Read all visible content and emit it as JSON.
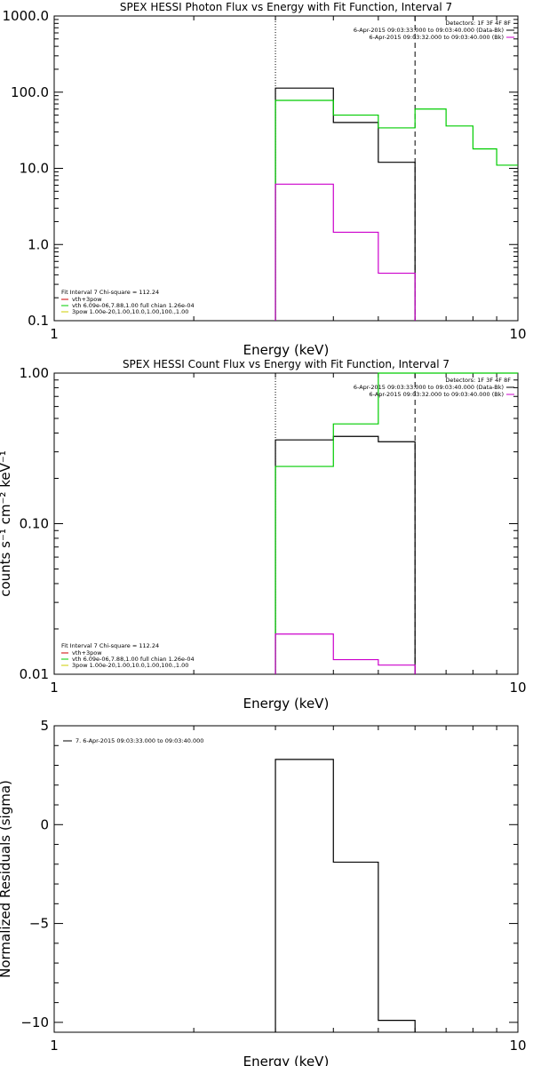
{
  "panels": [
    {
      "id": "photon",
      "title": "SPEX HESSI Photon Flux vs Energy with Fit Function, Interval 7",
      "xlabel": "Energy (keV)",
      "ylabel": "",
      "xscale": "log",
      "yscale": "log",
      "xlim": [
        1,
        10
      ],
      "ylim": [
        0.1,
        1000
      ],
      "xticks": [
        {
          "v": 1,
          "label": "1"
        },
        {
          "v": 10,
          "label": "10"
        }
      ],
      "yticks": [
        {
          "v": 0.1,
          "label": "0.1"
        },
        {
          "v": 1,
          "label": "1.0"
        },
        {
          "v": 10,
          "label": "10.0"
        },
        {
          "v": 100,
          "label": "100.0"
        },
        {
          "v": 1000,
          "label": "1000.0"
        }
      ],
      "vlines": [
        {
          "x": 3,
          "style": "dotted"
        },
        {
          "x": 6,
          "style": "dashed"
        }
      ],
      "detector_text": "Detectors: 1F 3F 4F 8F",
      "detector_lines": [
        {
          "text": "6-Apr-2015 09:03:33.000 to 09:03:40.000 (Data-Bk)",
          "color": "#000000"
        },
        {
          "text": "6-Apr-2015 09:03:32.000 to 09:03:40.000 (Bk)",
          "color": "#cc00cc"
        }
      ],
      "fit_header": "Fit Interval 7   Chi-square = 112.24",
      "legend": [
        {
          "label": "vth+3pow",
          "color": "#cc0000"
        },
        {
          "label": "vth 6.09e-06,7.88,1.00  full chian 1.26e-04",
          "color": "#00cc00"
        },
        {
          "label": "3pow 1.00e-20,1.00,10.0,1.00,100.,1.00",
          "color": "#cccc00"
        }
      ]
    },
    {
      "id": "count",
      "title": "SPEX HESSI Count Flux vs Energy with Fit Function, Interval 7",
      "xlabel": "Energy (keV)",
      "ylabel": "counts s⁻¹ cm⁻² keV⁻¹",
      "xscale": "log",
      "yscale": "log",
      "xlim": [
        1,
        10
      ],
      "ylim": [
        0.01,
        1
      ],
      "xticks": [
        {
          "v": 1,
          "label": "1"
        },
        {
          "v": 10,
          "label": "10"
        }
      ],
      "yticks": [
        {
          "v": 0.01,
          "label": "0.01"
        },
        {
          "v": 0.1,
          "label": "0.10"
        },
        {
          "v": 1,
          "label": "1.00"
        }
      ],
      "vlines": [
        {
          "x": 3,
          "style": "dotted"
        },
        {
          "x": 6,
          "style": "dashed"
        }
      ],
      "detector_text": "Detectors: 1F 3F 4F 8F",
      "detector_lines": [
        {
          "text": "6-Apr-2015 09:03:33.000 to 09:03:40.000 (Data-Bk)",
          "color": "#000000"
        },
        {
          "text": "6-Apr-2015 09:03:32.000 to 09:03:40.000 (Bk)",
          "color": "#cc00cc"
        }
      ],
      "fit_header": "Fit Interval 7   Chi-square = 112.24",
      "legend": [
        {
          "label": "vth+3pow",
          "color": "#cc0000"
        },
        {
          "label": "vth 6.09e-06,7.88,1.00  full chian 1.26e-04",
          "color": "#00cc00"
        },
        {
          "label": "3pow 1.00e-20,1.00,10.0,1.00,100.,1.00",
          "color": "#cccc00"
        }
      ]
    },
    {
      "id": "resid",
      "title": "",
      "xlabel": "Energy (keV)",
      "ylabel": "Normalized Residuals (sigma)",
      "xscale": "log",
      "yscale": "linear",
      "xlim": [
        1,
        10
      ],
      "ylim": [
        -10.5,
        5
      ],
      "xticks": [
        {
          "v": 1,
          "label": "1"
        },
        {
          "v": 10,
          "label": "10"
        }
      ],
      "yticks": [
        {
          "v": -10,
          "label": "−10"
        },
        {
          "v": -5,
          "label": "−5"
        },
        {
          "v": 0,
          "label": "0"
        },
        {
          "v": 5,
          "label": "5"
        }
      ],
      "vlines": [],
      "legend_single": {
        "label": "7.  6-Apr-2015 09:03:33.000 to 09:03:40.000",
        "color": "#000000"
      }
    }
  ],
  "chart_data": [
    {
      "type": "line",
      "panel": "photon",
      "title": "SPEX HESSI Photon Flux vs Energy with Fit Function, Interval 7",
      "xlabel": "Energy (keV)",
      "ylabel": "",
      "xlim": [
        1,
        10
      ],
      "ylim": [
        0.1,
        1000
      ],
      "grid": false,
      "series": [
        {
          "name": "6-Apr-2015 09:03:33.000 to 09:03:40.000 (Data-Bk)",
          "color": "#000000",
          "step": true,
          "edges": [
            3,
            4,
            5,
            6
          ],
          "values": [
            113,
            40,
            12
          ]
        },
        {
          "name": "vth",
          "color": "#00cc00",
          "step": true,
          "edges": [
            3,
            4,
            5,
            6,
            7,
            8,
            9,
            10
          ],
          "values": [
            78,
            50,
            34,
            60,
            36,
            18,
            11
          ]
        },
        {
          "name": "6-Apr-2015 09:03:32.000 to 09:03:40.000 (Bk)",
          "color": "#cc00cc",
          "step": true,
          "edges": [
            3,
            4,
            5,
            6
          ],
          "values": [
            6.2,
            1.45,
            0.42
          ]
        }
      ]
    },
    {
      "type": "line",
      "panel": "count",
      "title": "SPEX HESSI Count Flux vs Energy with Fit Function, Interval 7",
      "xlabel": "Energy (keV)",
      "ylabel": "counts s⁻¹ cm⁻² keV⁻¹",
      "xlim": [
        1,
        10
      ],
      "ylim": [
        0.01,
        1
      ],
      "grid": false,
      "series": [
        {
          "name": "6-Apr-2015 09:03:33.000 to 09:03:40.000 (Data-Bk)",
          "color": "#000000",
          "step": true,
          "edges": [
            3,
            4,
            5,
            6
          ],
          "values": [
            0.36,
            0.38,
            0.35
          ]
        },
        {
          "name": "vth",
          "color": "#00cc00",
          "step": true,
          "edges": [
            3,
            4,
            5,
            6,
            10
          ],
          "values": [
            0.24,
            0.46,
            1.0,
            1.0
          ]
        },
        {
          "name": "6-Apr-2015 09:03:32.000 to 09:03:40.000 (Bk)",
          "color": "#cc00cc",
          "step": true,
          "edges": [
            3,
            4,
            5,
            6
          ],
          "values": [
            0.0185,
            0.0125,
            0.0115
          ]
        }
      ]
    },
    {
      "type": "line",
      "panel": "resid",
      "title": "",
      "xlabel": "Energy (keV)",
      "ylabel": "Normalized Residuals (sigma)",
      "xlim": [
        1,
        10
      ],
      "ylim": [
        -10.5,
        5
      ],
      "grid": false,
      "series": [
        {
          "name": "7.  6-Apr-2015 09:03:33.000 to 09:03:40.000",
          "color": "#000000",
          "step": true,
          "edges": [
            3,
            4,
            5,
            6
          ],
          "values": [
            3.3,
            -1.9,
            -9.9
          ]
        }
      ]
    }
  ]
}
